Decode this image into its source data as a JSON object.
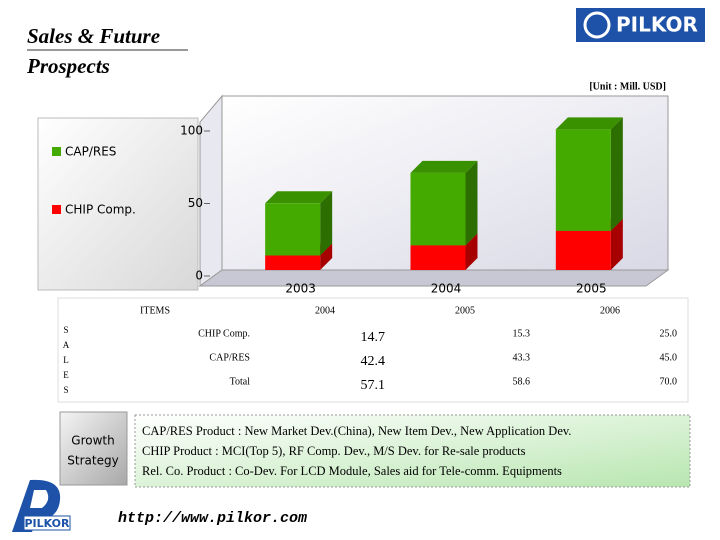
{
  "header": {
    "title_lines": [
      "Sales & Future",
      "Prospects"
    ],
    "logo": "PILKOR",
    "unit": "[Unit : Mill. USD]"
  },
  "chart_data": {
    "type": "bar",
    "stacked": true,
    "categories": [
      "2003",
      "2004",
      "2005"
    ],
    "series": [
      {
        "name": "CHIP  Comp.",
        "color": "#ff0000",
        "values": [
          10,
          17,
          27
        ]
      },
      {
        "name": "CAP/RES",
        "color": "#44aa00",
        "values": [
          36,
          50,
          70
        ]
      }
    ],
    "ylim": [
      0,
      100
    ],
    "yticks": [
      0,
      50,
      100
    ],
    "legend": "left"
  },
  "table": {
    "section_label": [
      "S",
      "A",
      "L",
      "E",
      "S"
    ],
    "header": [
      "ITEMS",
      "2004",
      "2005",
      "2006"
    ],
    "rows": [
      [
        "CHIP Comp.",
        "14.7",
        "15.3",
        "25.0"
      ],
      [
        "CAP/RES",
        "42.4",
        "43.3",
        "45.0"
      ],
      [
        "Total",
        "57.1",
        "58.6",
        "70.0"
      ]
    ]
  },
  "strategy": {
    "label_lines": [
      "Growth",
      "Strategy"
    ],
    "lines": [
      "CAP/RES Product : New Market Dev.(China), New Item Dev., New Application Dev.",
      "CHIP Product : MCI(Top 5), RF Comp. Dev., M/S Dev. for Re-sale products",
      "Rel. Co. Product : Co-Dev. For LCD Module, Sales aid for Tele-comm. Equipments"
    ]
  },
  "footer": {
    "url": "http://www.pilkor.com",
    "logo": "PILKOR"
  }
}
